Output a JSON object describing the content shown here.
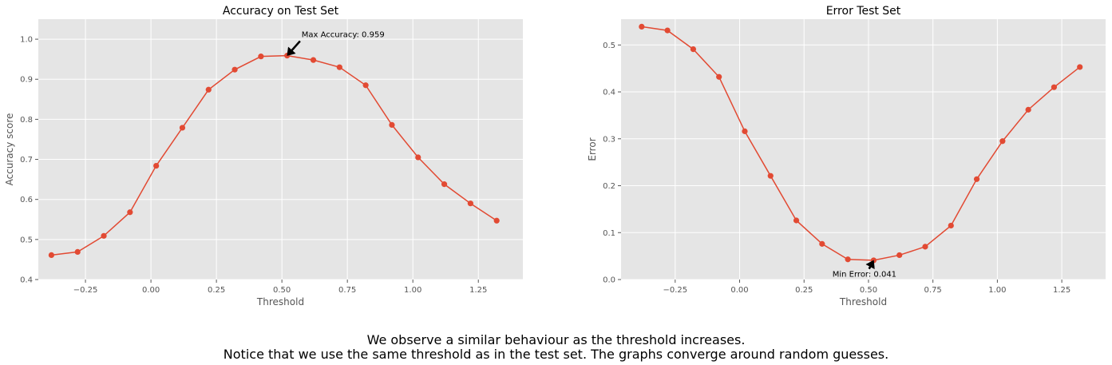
{
  "chart_data": [
    {
      "type": "line",
      "title": "Accuracy on Test Set",
      "xlabel": "Threshold",
      "ylabel": "Accuracy score",
      "xlim": [
        -0.43,
        1.42
      ],
      "ylim": [
        0.4,
        1.05
      ],
      "xticks": [
        -0.25,
        0.0,
        0.25,
        0.5,
        0.75,
        1.0,
        1.25
      ],
      "xtick_labels": [
        "−0.25",
        "0.00",
        "0.25",
        "0.50",
        "0.75",
        "1.00",
        "1.25"
      ],
      "yticks": [
        0.4,
        0.5,
        0.6,
        0.7,
        0.8,
        0.9,
        1.0
      ],
      "ytick_labels": [
        "0.4",
        "0.5",
        "0.6",
        "0.7",
        "0.8",
        "0.9",
        "1.0"
      ],
      "grid": true,
      "series": [
        {
          "color": "#e24a33",
          "x": [
            -0.38,
            -0.28,
            -0.18,
            -0.08,
            0.02,
            0.12,
            0.22,
            0.32,
            0.42,
            0.52,
            0.62,
            0.72,
            0.82,
            0.92,
            1.02,
            1.12,
            1.22,
            1.32
          ],
          "y": [
            0.461,
            0.469,
            0.509,
            0.568,
            0.684,
            0.779,
            0.874,
            0.924,
            0.957,
            0.959,
            0.948,
            0.93,
            0.885,
            0.786,
            0.705,
            0.638,
            0.59,
            0.547
          ]
        }
      ],
      "annotation": {
        "text": "Max Accuracy: 0.959",
        "x": 0.52,
        "y": 0.959,
        "text_x": 0.575,
        "text_y": 1.005
      }
    },
    {
      "type": "line",
      "title": "Error Test Set",
      "xlabel": "Threshold",
      "ylabel": "Error",
      "xlim": [
        -0.46,
        1.42
      ],
      "ylim": [
        0.0,
        0.555
      ],
      "xticks": [
        -0.25,
        0.0,
        0.25,
        0.5,
        0.75,
        1.0,
        1.25
      ],
      "xtick_labels": [
        "−0.25",
        "0.00",
        "0.25",
        "0.50",
        "0.75",
        "1.00",
        "1.25"
      ],
      "yticks": [
        0.0,
        0.1,
        0.2,
        0.3,
        0.4,
        0.5
      ],
      "ytick_labels": [
        "0.0",
        "0.1",
        "0.2",
        "0.3",
        "0.4",
        "0.5"
      ],
      "grid": true,
      "series": [
        {
          "color": "#e24a33",
          "x": [
            -0.38,
            -0.28,
            -0.18,
            -0.08,
            0.02,
            0.12,
            0.22,
            0.32,
            0.42,
            0.52,
            0.62,
            0.72,
            0.82,
            0.92,
            1.02,
            1.12,
            1.22,
            1.32
          ],
          "y": [
            0.539,
            0.531,
            0.491,
            0.432,
            0.316,
            0.221,
            0.126,
            0.076,
            0.043,
            0.041,
            0.052,
            0.07,
            0.115,
            0.214,
            0.295,
            0.362,
            0.41,
            0.453
          ]
        }
      ],
      "annotation": {
        "text": "Min Error: 0.041",
        "x": 0.52,
        "y": 0.041,
        "text_x": 0.36,
        "text_y": 0.006
      }
    }
  ],
  "caption": {
    "line1": "We observe a similar behaviour as the threshold increases.",
    "line2": "Notice that we use the same threshold as in the test set. The graphs converge around random guesses."
  }
}
